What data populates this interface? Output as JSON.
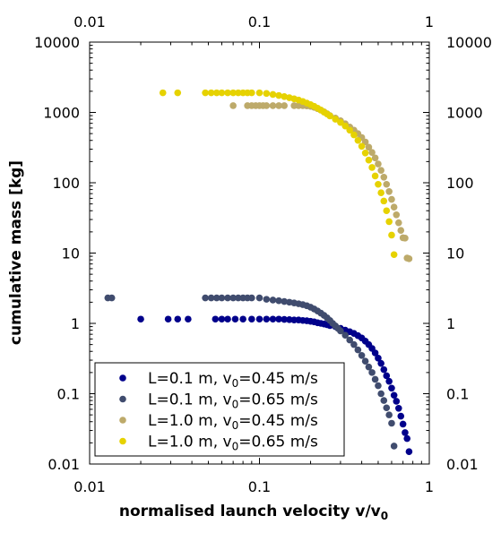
{
  "chart_data": {
    "type": "scatter",
    "xlabel": "normalised launch velocity v/v",
    "xlabel_sub": "0",
    "ylabel": "cumulative mass [kg]",
    "xscale": "log",
    "yscale": "log",
    "xlim": [
      0.01,
      1
    ],
    "ylim": [
      0.01,
      10000
    ],
    "xticks": [
      0.01,
      0.1,
      1
    ],
    "xtick_labels": [
      "0.01",
      "0.1",
      "1"
    ],
    "yticks": [
      0.01,
      0.1,
      1,
      10,
      100,
      1000,
      10000
    ],
    "ytick_labels": [
      "0.01",
      "0.1",
      "1",
      "10",
      "100",
      "1000",
      "10000"
    ],
    "mirror_axes": true,
    "grid": false,
    "legend_position": "lower-left",
    "series": [
      {
        "name": "L=0.1 m, v",
        "name_sub": "0",
        "name_rest": "=0.45 m/s",
        "color": "#00008b",
        "points": [
          [
            0.02,
            1.15
          ],
          [
            0.029,
            1.15
          ],
          [
            0.033,
            1.15
          ],
          [
            0.038,
            1.15
          ],
          [
            0.055,
            1.15
          ],
          [
            0.06,
            1.15
          ],
          [
            0.065,
            1.15
          ],
          [
            0.072,
            1.15
          ],
          [
            0.08,
            1.15
          ],
          [
            0.09,
            1.15
          ],
          [
            0.1,
            1.15
          ],
          [
            0.11,
            1.15
          ],
          [
            0.12,
            1.15
          ],
          [
            0.13,
            1.15
          ],
          [
            0.14,
            1.14
          ],
          [
            0.15,
            1.13
          ],
          [
            0.16,
            1.12
          ],
          [
            0.17,
            1.12
          ],
          [
            0.18,
            1.1
          ],
          [
            0.19,
            1.09
          ],
          [
            0.2,
            1.07
          ],
          [
            0.21,
            1.05
          ],
          [
            0.22,
            1.02
          ],
          [
            0.23,
            1.0
          ],
          [
            0.24,
            0.98
          ],
          [
            0.25,
            0.96
          ],
          [
            0.26,
            0.93
          ],
          [
            0.28,
            0.9
          ],
          [
            0.3,
            0.85
          ],
          [
            0.32,
            0.8
          ],
          [
            0.34,
            0.76
          ],
          [
            0.36,
            0.72
          ],
          [
            0.38,
            0.67
          ],
          [
            0.4,
            0.62
          ],
          [
            0.42,
            0.56
          ],
          [
            0.44,
            0.5
          ],
          [
            0.46,
            0.44
          ],
          [
            0.48,
            0.38
          ],
          [
            0.5,
            0.32
          ],
          [
            0.52,
            0.27
          ],
          [
            0.54,
            0.22
          ],
          [
            0.56,
            0.18
          ],
          [
            0.58,
            0.15
          ],
          [
            0.6,
            0.12
          ],
          [
            0.62,
            0.095
          ],
          [
            0.64,
            0.078
          ],
          [
            0.66,
            0.062
          ],
          [
            0.68,
            0.048
          ],
          [
            0.7,
            0.037
          ],
          [
            0.72,
            0.028
          ],
          [
            0.74,
            0.023
          ],
          [
            0.76,
            0.015
          ]
        ]
      },
      {
        "name": "L=0.1 m, v",
        "name_sub": "0",
        "name_rest": "=0.65 m/s",
        "color": "#404c6e",
        "points": [
          [
            0.0128,
            2.3
          ],
          [
            0.0135,
            2.3
          ],
          [
            0.048,
            2.3
          ],
          [
            0.052,
            2.3
          ],
          [
            0.056,
            2.3
          ],
          [
            0.06,
            2.3
          ],
          [
            0.065,
            2.3
          ],
          [
            0.07,
            2.3
          ],
          [
            0.075,
            2.3
          ],
          [
            0.08,
            2.3
          ],
          [
            0.085,
            2.3
          ],
          [
            0.09,
            2.3
          ],
          [
            0.1,
            2.3
          ],
          [
            0.11,
            2.2
          ],
          [
            0.12,
            2.15
          ],
          [
            0.13,
            2.1
          ],
          [
            0.14,
            2.05
          ],
          [
            0.15,
            2.0
          ],
          [
            0.16,
            1.95
          ],
          [
            0.17,
            1.9
          ],
          [
            0.18,
            1.85
          ],
          [
            0.19,
            1.78
          ],
          [
            0.2,
            1.7
          ],
          [
            0.21,
            1.6
          ],
          [
            0.22,
            1.5
          ],
          [
            0.23,
            1.4
          ],
          [
            0.24,
            1.3
          ],
          [
            0.25,
            1.2
          ],
          [
            0.26,
            1.1
          ],
          [
            0.27,
            1.0
          ],
          [
            0.28,
            0.92
          ],
          [
            0.29,
            0.85
          ],
          [
            0.3,
            0.78
          ],
          [
            0.32,
            0.68
          ],
          [
            0.34,
            0.58
          ],
          [
            0.36,
            0.5
          ],
          [
            0.38,
            0.42
          ],
          [
            0.4,
            0.35
          ],
          [
            0.42,
            0.29
          ],
          [
            0.44,
            0.24
          ],
          [
            0.46,
            0.2
          ],
          [
            0.48,
            0.16
          ],
          [
            0.5,
            0.13
          ],
          [
            0.52,
            0.1
          ],
          [
            0.54,
            0.08
          ],
          [
            0.56,
            0.063
          ],
          [
            0.58,
            0.05
          ],
          [
            0.6,
            0.038
          ],
          [
            0.62,
            0.018
          ]
        ]
      },
      {
        "name": "L=1.0 m, v",
        "name_sub": "0",
        "name_rest": "=0.45 m/s",
        "color": "#bdaa6a",
        "points": [
          [
            0.07,
            1250
          ],
          [
            0.085,
            1250
          ],
          [
            0.09,
            1250
          ],
          [
            0.095,
            1250
          ],
          [
            0.1,
            1250
          ],
          [
            0.105,
            1250
          ],
          [
            0.11,
            1250
          ],
          [
            0.12,
            1250
          ],
          [
            0.13,
            1250
          ],
          [
            0.14,
            1250
          ],
          [
            0.16,
            1250
          ],
          [
            0.17,
            1250
          ],
          [
            0.18,
            1250
          ],
          [
            0.19,
            1240
          ],
          [
            0.2,
            1220
          ],
          [
            0.21,
            1180
          ],
          [
            0.22,
            1130
          ],
          [
            0.23,
            1080
          ],
          [
            0.24,
            1020
          ],
          [
            0.25,
            960
          ],
          [
            0.26,
            900
          ],
          [
            0.28,
            830
          ],
          [
            0.3,
            760
          ],
          [
            0.32,
            690
          ],
          [
            0.34,
            620
          ],
          [
            0.36,
            560
          ],
          [
            0.38,
            500
          ],
          [
            0.4,
            440
          ],
          [
            0.42,
            380
          ],
          [
            0.44,
            320
          ],
          [
            0.46,
            270
          ],
          [
            0.48,
            225
          ],
          [
            0.5,
            185
          ],
          [
            0.52,
            150
          ],
          [
            0.54,
            120
          ],
          [
            0.56,
            95
          ],
          [
            0.58,
            75
          ],
          [
            0.6,
            58
          ],
          [
            0.62,
            45
          ],
          [
            0.64,
            35
          ],
          [
            0.66,
            27
          ],
          [
            0.68,
            21
          ],
          [
            0.7,
            16.5
          ],
          [
            0.72,
            16.3
          ],
          [
            0.74,
            8.5
          ],
          [
            0.76,
            8.3
          ]
        ]
      },
      {
        "name": "L=1.0 m, v",
        "name_sub": "0",
        "name_rest": "=0.65 m/s",
        "color": "#e6d200",
        "points": [
          [
            0.027,
            1900
          ],
          [
            0.033,
            1900
          ],
          [
            0.048,
            1900
          ],
          [
            0.052,
            1900
          ],
          [
            0.056,
            1900
          ],
          [
            0.06,
            1900
          ],
          [
            0.065,
            1900
          ],
          [
            0.07,
            1900
          ],
          [
            0.075,
            1900
          ],
          [
            0.08,
            1900
          ],
          [
            0.085,
            1900
          ],
          [
            0.09,
            1900
          ],
          [
            0.1,
            1900
          ],
          [
            0.11,
            1860
          ],
          [
            0.12,
            1800
          ],
          [
            0.13,
            1740
          ],
          [
            0.14,
            1680
          ],
          [
            0.15,
            1620
          ],
          [
            0.16,
            1560
          ],
          [
            0.17,
            1500
          ],
          [
            0.18,
            1430
          ],
          [
            0.19,
            1360
          ],
          [
            0.2,
            1290
          ],
          [
            0.21,
            1220
          ],
          [
            0.22,
            1150
          ],
          [
            0.23,
            1080
          ],
          [
            0.24,
            1010
          ],
          [
            0.25,
            950
          ],
          [
            0.26,
            890
          ],
          [
            0.28,
            800
          ],
          [
            0.3,
            720
          ],
          [
            0.32,
            640
          ],
          [
            0.34,
            560
          ],
          [
            0.36,
            480
          ],
          [
            0.38,
            400
          ],
          [
            0.4,
            330
          ],
          [
            0.42,
            265
          ],
          [
            0.44,
            210
          ],
          [
            0.46,
            165
          ],
          [
            0.48,
            125
          ],
          [
            0.5,
            95
          ],
          [
            0.52,
            72
          ],
          [
            0.54,
            55
          ],
          [
            0.56,
            40
          ],
          [
            0.58,
            28
          ],
          [
            0.6,
            18
          ],
          [
            0.62,
            9.5
          ]
        ]
      }
    ]
  }
}
